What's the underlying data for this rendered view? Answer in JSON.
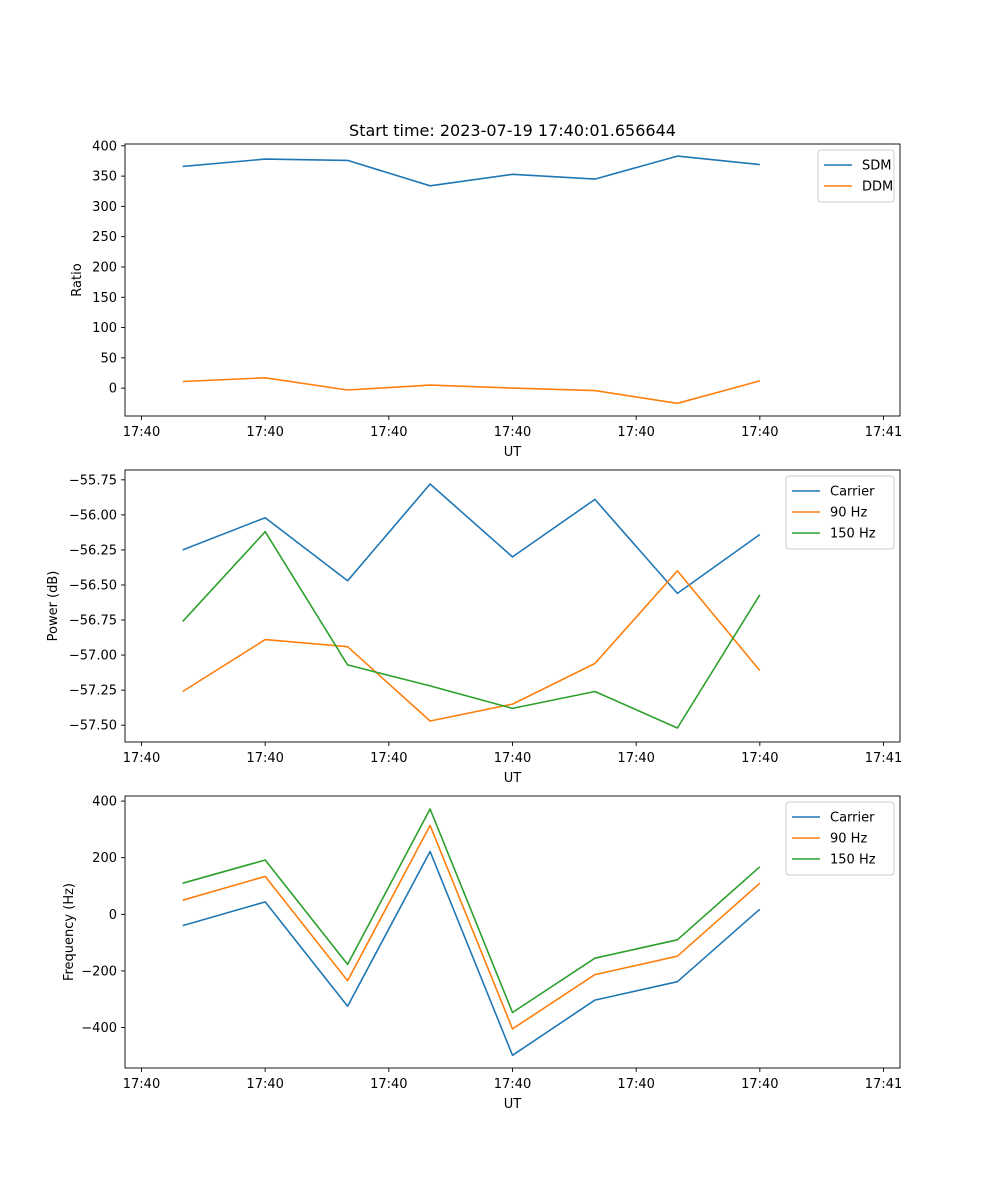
{
  "chart_data": [
    {
      "type": "line",
      "title": "Start time: 2023-07-19 17:40:01.656644",
      "xlabel": "UT",
      "ylabel": "Ratio",
      "legend_position": "top-right",
      "grid": false,
      "x": [
        1,
        2,
        3,
        4,
        5,
        6,
        7,
        8
      ],
      "xlim": [
        0.3,
        9.7
      ],
      "xticks": [
        0.5,
        2,
        3.5,
        5,
        6.5,
        8,
        9.5
      ],
      "xtick_labels": [
        "17:40",
        "17:40",
        "17:40",
        "17:40",
        "17:40",
        "17:40",
        "17:41"
      ],
      "ylim": [
        -46,
        403
      ],
      "yticks": [
        0,
        50,
        100,
        150,
        200,
        250,
        300,
        350,
        400
      ],
      "ytick_labels": [
        "0",
        "50",
        "100",
        "150",
        "200",
        "250",
        "300",
        "350",
        "400"
      ],
      "series": [
        {
          "name": "SDM",
          "color": "#1f77b4",
          "values": [
            366,
            378,
            376,
            334,
            353,
            345,
            383,
            369
          ]
        },
        {
          "name": "DDM",
          "color": "#ff7f0e",
          "values": [
            11,
            17,
            -3,
            5,
            0,
            -4,
            -25,
            12
          ]
        }
      ]
    },
    {
      "type": "line",
      "title": "",
      "xlabel": "UT",
      "ylabel": "Power (dB)",
      "legend_position": "top-right",
      "grid": false,
      "x": [
        1,
        2,
        3,
        4,
        5,
        6,
        7,
        8
      ],
      "xlim": [
        0.3,
        9.7
      ],
      "xticks": [
        0.5,
        2,
        3.5,
        5,
        6.5,
        8,
        9.5
      ],
      "xtick_labels": [
        "17:40",
        "17:40",
        "17:40",
        "17:40",
        "17:40",
        "17:40",
        "17:41"
      ],
      "ylim": [
        -57.62,
        -55.68
      ],
      "yticks": [
        -57.5,
        -57.25,
        -57.0,
        -56.75,
        -56.5,
        -56.25,
        -56.0,
        -55.75
      ],
      "ytick_labels": [
        "−57.50",
        "−57.25",
        "−57.00",
        "−56.75",
        "−56.50",
        "−56.25",
        "−56.00",
        "−55.75"
      ],
      "series": [
        {
          "name": "Carrier",
          "color": "#1f77b4",
          "values": [
            -56.25,
            -56.02,
            -56.47,
            -55.78,
            -56.3,
            -55.89,
            -56.56,
            -56.14
          ]
        },
        {
          "name": "90 Hz",
          "color": "#ff7f0e",
          "values": [
            -57.26,
            -56.89,
            -56.94,
            -57.47,
            -57.35,
            -57.06,
            -56.4,
            -57.11
          ]
        },
        {
          "name": "150 Hz",
          "color": "#2ca02c",
          "values": [
            -56.76,
            -56.12,
            -57.07,
            -57.22,
            -57.38,
            -57.26,
            -57.52,
            -56.57
          ]
        }
      ]
    },
    {
      "type": "line",
      "title": "",
      "xlabel": "UT",
      "ylabel": "Frequency (Hz)",
      "legend_position": "top-right",
      "grid": false,
      "x": [
        1,
        2,
        3,
        4,
        5,
        6,
        7,
        8
      ],
      "xlim": [
        0.3,
        9.7
      ],
      "xticks": [
        0.5,
        2,
        3.5,
        5,
        6.5,
        8,
        9.5
      ],
      "xtick_labels": [
        "17:40",
        "17:40",
        "17:40",
        "17:40",
        "17:40",
        "17:40",
        "17:41"
      ],
      "ylim": [
        -543,
        418
      ],
      "yticks": [
        -400,
        -200,
        0,
        200,
        400
      ],
      "ytick_labels": [
        "−400",
        "−200",
        "0",
        "200",
        "400"
      ],
      "series": [
        {
          "name": "Carrier",
          "color": "#1f77b4",
          "values": [
            -40,
            44,
            -325,
            222,
            -498,
            -303,
            -238,
            18
          ]
        },
        {
          "name": "90 Hz",
          "color": "#ff7f0e",
          "values": [
            50,
            134,
            -235,
            314,
            -405,
            -213,
            -148,
            110
          ]
        },
        {
          "name": "150 Hz",
          "color": "#2ca02c",
          "values": [
            110,
            192,
            -177,
            372,
            -347,
            -155,
            -90,
            168
          ]
        }
      ]
    }
  ]
}
